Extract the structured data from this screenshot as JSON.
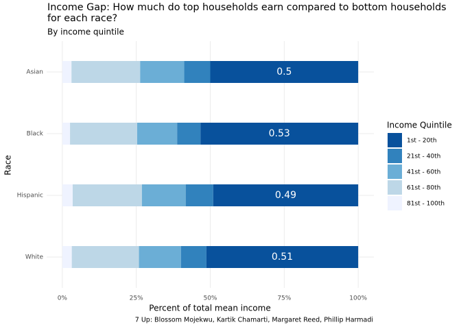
{
  "chart_data": {
    "type": "stacked-bar-horizontal",
    "title": "Income Gap: How much do top households earn compared to bottom households for each race?",
    "subtitle": "By income quintile",
    "x_label": "Percent of total mean income",
    "y_label": "Race",
    "caption": "7 Up: Blossom Mojekwu, Kartik Chamarti, Margaret Reed, Phillip Harmadi",
    "legend_title": "Income Quintile",
    "legend_position": "right",
    "grid": true,
    "categories": [
      "Asian",
      "Black",
      "Hispanic",
      "White"
    ],
    "series": [
      {
        "name": "1st - 20th",
        "color": "#08519c",
        "values": [
          50,
          53.3,
          49,
          51.3
        ],
        "value_labels": [
          "0.5",
          "0.53",
          "0.49",
          "0.51"
        ]
      },
      {
        "name": "21st - 40th",
        "color": "#3182bd",
        "values": [
          8.8,
          7.9,
          9.3,
          8.6
        ]
      },
      {
        "name": "41st - 60th",
        "color": "#6baed6",
        "values": [
          14.9,
          13.5,
          14.8,
          14.2
        ]
      },
      {
        "name": "61st - 80th",
        "color": "#bdd7e7",
        "values": [
          23.2,
          22.7,
          23.4,
          22.7
        ]
      },
      {
        "name": "81st - 100th",
        "color": "#eff3ff",
        "values": [
          3.1,
          2.6,
          3.5,
          3.2
        ]
      }
    ],
    "xlim": [
      -5.3,
      105.3
    ],
    "xticks": [
      {
        "value": 0,
        "label": "0%"
      },
      {
        "value": 25,
        "label": "25%"
      },
      {
        "value": 50,
        "label": "50%"
      },
      {
        "value": 75,
        "label": "75%"
      },
      {
        "value": 100,
        "label": "100%"
      }
    ]
  }
}
